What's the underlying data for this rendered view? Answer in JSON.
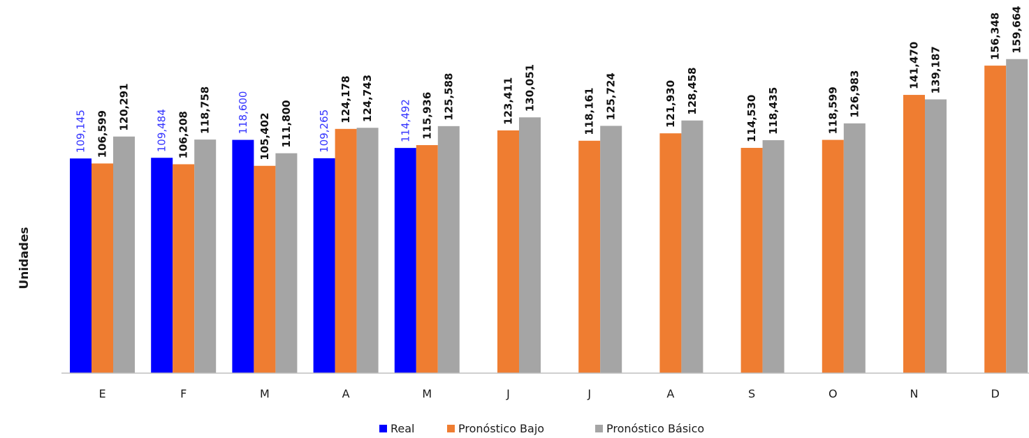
{
  "chart_data": {
    "type": "bar",
    "title": "",
    "xlabel": "",
    "ylabel": "Unidades",
    "categories": [
      "E",
      "F",
      "M",
      "A",
      "M",
      "J",
      "J",
      "A",
      "S",
      "O",
      "N",
      "D"
    ],
    "series": [
      {
        "name": "Real",
        "color": "#0000ff",
        "label_color": "#3333ff",
        "values": [
          109145,
          109484,
          118600,
          109265,
          114492,
          null,
          null,
          null,
          null,
          null,
          null,
          null
        ],
        "labels": [
          "109,145",
          "109,484",
          "118,600",
          "109,265",
          "114,492",
          null,
          null,
          null,
          null,
          null,
          null,
          null
        ]
      },
      {
        "name": "Pronóstico Bajo",
        "color": "#ef7d31",
        "values": [
          106599,
          106208,
          105402,
          124178,
          115936,
          123411,
          118161,
          121930,
          114530,
          118599,
          141470,
          156348
        ],
        "labels": [
          "106,599",
          "106,208",
          "105,402",
          "124,178",
          "115,936",
          "123,411",
          "118,161",
          "121,930",
          "114,530",
          "118,599",
          "141,470",
          "156,348"
        ]
      },
      {
        "name": "Pronóstico Básico",
        "color": "#a5a5a5",
        "values": [
          120291,
          118758,
          111800,
          124743,
          125588,
          130051,
          125724,
          128458,
          118435,
          126983,
          139187,
          159664
        ],
        "labels": [
          "120,291",
          "118,758",
          "111,800",
          "124,743",
          "125,588",
          "130,051",
          "125,724",
          "128,458",
          "118,435",
          "126,983",
          "139,187",
          "159,664"
        ]
      }
    ],
    "ylim": [
      0,
      160000
    ],
    "grid": false,
    "legend_position": "bottom"
  }
}
